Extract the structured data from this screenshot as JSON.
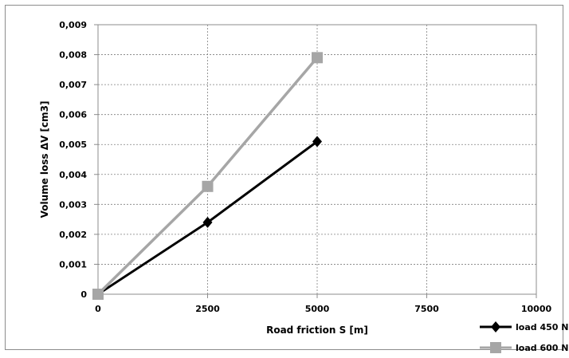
{
  "chart_data": {
    "type": "line",
    "xlabel": "Road friction S [m]",
    "ylabel": "Volume loss ΔV [cm3]",
    "xlim": [
      0,
      10000
    ],
    "ylim": [
      0,
      0.009
    ],
    "x_ticks": [
      "0",
      "2500",
      "5000",
      "7500",
      "10000"
    ],
    "y_ticks": [
      "0",
      "0,001",
      "0,002",
      "0,003",
      "0,004",
      "0,005",
      "0,006",
      "0,007",
      "0,008",
      "0,009"
    ],
    "grid": true,
    "legend_position": "bottom-right",
    "series": [
      {
        "name": "load 450 N",
        "x": [
          0,
          2500,
          5000
        ],
        "values": [
          0,
          0.0024,
          0.0051
        ],
        "color": "#000000",
        "marker": "diamond"
      },
      {
        "name": "load 600 N",
        "x": [
          0,
          2500,
          5000
        ],
        "values": [
          0,
          0.0036,
          0.0079
        ],
        "color": "#a6a6a6",
        "marker": "square"
      }
    ]
  }
}
